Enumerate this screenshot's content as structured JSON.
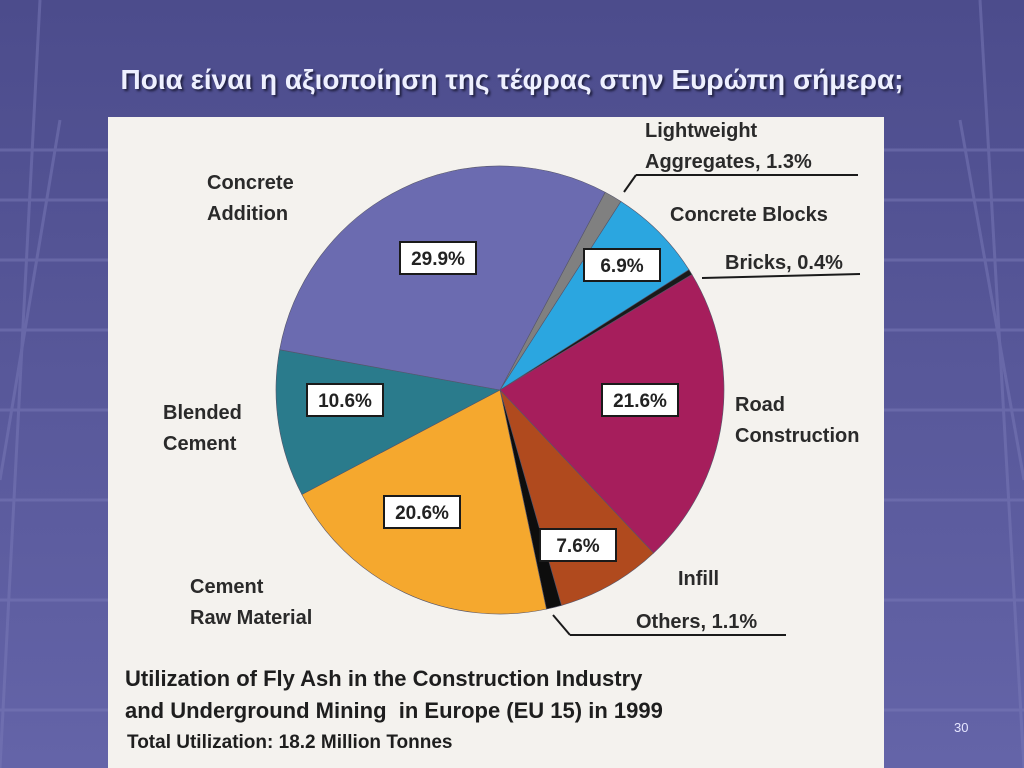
{
  "title": "Ποια είναι η αξιοποίηση της τέφρας στην Ευρώπη σήμερα;",
  "page_number": "30",
  "chart_data": {
    "type": "pie",
    "title": "Utilization of Fly Ash in the Construction Industry\nand Underground Mining  in Europe (EU 15) in 1999",
    "subtitle": "Total Utilization: 18.2 Million Tonnes",
    "categories": [
      "Lightweight\nAggregates, 1.3%",
      "Concrete Blocks",
      "Bricks, 0.4%",
      "Road\nConstruction",
      "Infill",
      "Others, 1.1%",
      "Cement\nRaw Material",
      "Blended\nCement",
      "Concrete\nAddition"
    ],
    "values": [
      1.3,
      6.9,
      0.4,
      21.6,
      7.6,
      1.1,
      20.6,
      10.6,
      29.9
    ],
    "value_labels": [
      null,
      "6.9%",
      null,
      "21.6%",
      "7.6%",
      null,
      "20.6%",
      "10.6%",
      "29.9%"
    ],
    "colors": [
      "#808080",
      "#2ba6e0",
      "#1a1a1a",
      "#a61e5c",
      "#b04a1e",
      "#0d0d0d",
      "#f5a82e",
      "#2a7b8c",
      "#6b6bb0"
    ]
  }
}
